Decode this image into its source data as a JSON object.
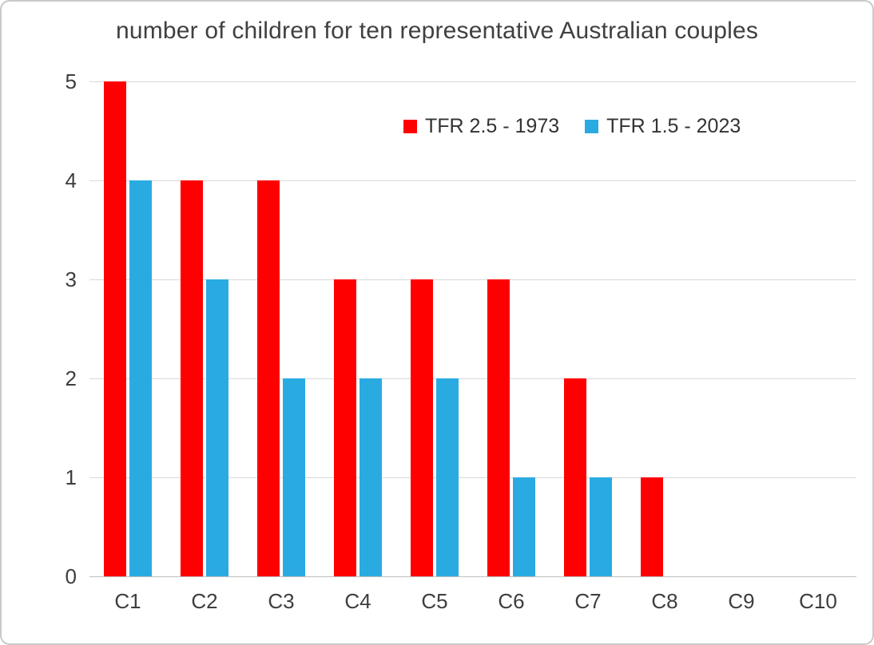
{
  "chart_data": {
    "type": "bar",
    "title": "number of children for ten representative Australian couples",
    "categories": [
      "C1",
      "C2",
      "C3",
      "C4",
      "C5",
      "C6",
      "C7",
      "C8",
      "C9",
      "C10"
    ],
    "series": [
      {
        "name": "TFR 2.5 - 1973",
        "color": "#FF0000",
        "values": [
          5,
          4,
          4,
          3,
          3,
          3,
          2,
          1,
          0,
          0
        ]
      },
      {
        "name": "TFR 1.5 - 2023",
        "color": "#29ABE2",
        "values": [
          4,
          3,
          2,
          2,
          2,
          1,
          1,
          0,
          0,
          0
        ]
      }
    ],
    "xlabel": "",
    "ylabel": "",
    "ylim": [
      0,
      5
    ],
    "yticks": [
      0,
      1,
      2,
      3,
      4,
      5
    ],
    "grid": true,
    "legend_position": "top-center-inside"
  }
}
